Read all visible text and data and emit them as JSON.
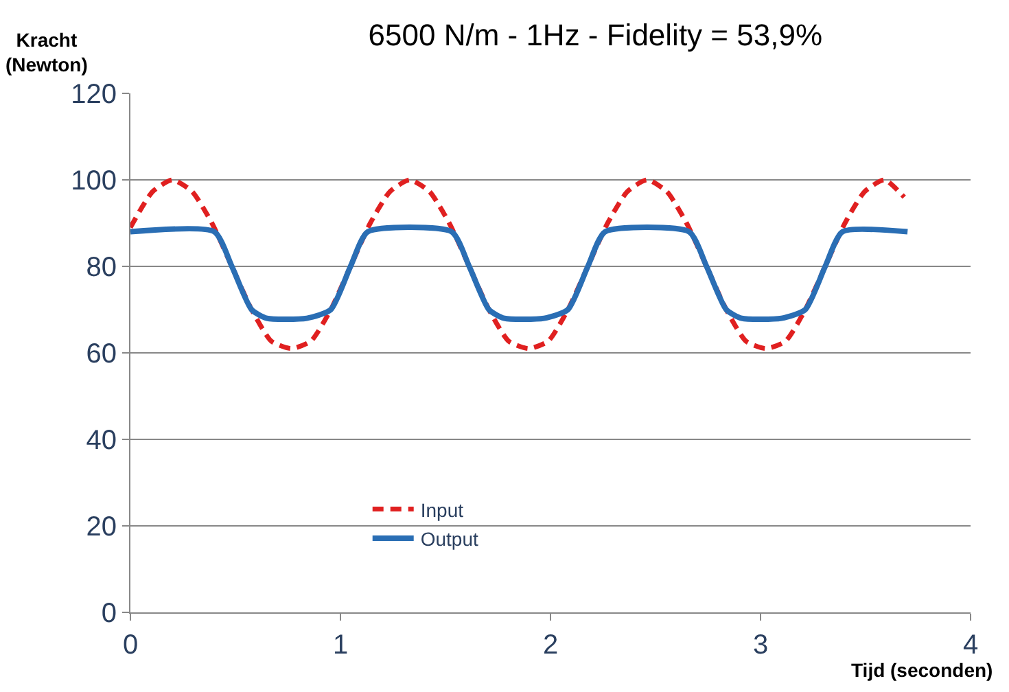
{
  "chart_data": {
    "type": "line",
    "title": "6500 N/m - 1Hz - Fidelity = 53,9%",
    "xlabel": "Tijd (seconden)",
    "ylabel": "Kracht\n(Newton)",
    "xlim": [
      0,
      4
    ],
    "xticks": [
      0,
      1,
      2,
      3,
      4
    ],
    "ylim": [
      0,
      120
    ],
    "yticks": [
      0,
      20,
      40,
      60,
      80,
      100,
      120
    ],
    "grid": "y",
    "legend": "bottom",
    "marker": "none",
    "series": [
      {
        "name": "Input",
        "color": "#e02020",
        "line_style": "dashed",
        "x": [
          0,
          0.106,
          0.2,
          0.294,
          0.388,
          0.483,
          0.577,
          0.671,
          0.765,
          0.859,
          0.954,
          1.048,
          1.142,
          1.236,
          1.33,
          1.424,
          1.518,
          1.613,
          1.707,
          1.801,
          1.895,
          1.989,
          2.083,
          2.178,
          2.272,
          2.366,
          2.46,
          2.554,
          2.648,
          2.743,
          2.837,
          2.931,
          3.025,
          3.119,
          3.213,
          3.308,
          3.402,
          3.496,
          3.59,
          3.684
        ],
        "values": [
          89,
          97.3,
          100,
          97.3,
          90,
          80,
          70,
          62.7,
          61,
          62.7,
          70,
          80,
          90,
          97.3,
          100,
          97.3,
          90,
          80,
          70,
          62.7,
          61,
          62.7,
          70,
          80,
          90,
          97.3,
          100,
          97.3,
          90,
          80,
          70,
          62.7,
          61,
          62.7,
          70,
          80,
          90,
          97.3,
          100,
          96
        ]
      },
      {
        "name": "Output",
        "color": "#2a6eb4",
        "line_style": "solid",
        "x": [
          0,
          0.4,
          0.483,
          0.577,
          0.65,
          0.84,
          0.954,
          1.048,
          1.13,
          1.53,
          1.613,
          1.707,
          1.78,
          1.97,
          2.083,
          2.178,
          2.26,
          2.66,
          2.743,
          2.837,
          2.91,
          3.1,
          3.213,
          3.308,
          3.39,
          3.7
        ],
        "values": [
          88,
          88,
          80,
          70,
          68,
          68,
          70,
          80,
          88,
          88,
          80,
          70,
          68,
          68,
          70,
          80,
          88,
          88,
          80,
          70,
          68,
          68,
          70,
          80,
          88,
          88
        ]
      }
    ]
  }
}
